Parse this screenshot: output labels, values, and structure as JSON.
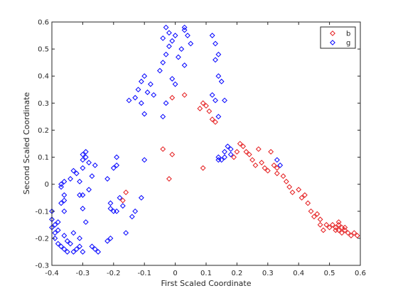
{
  "chart_data": {
    "type": "scatter",
    "title": "",
    "xlabel": "First Scaled Coordinate",
    "ylabel": "Second Scaled Coordinate",
    "xlim": [
      -0.4,
      0.6
    ],
    "ylim": [
      -0.3,
      0.6
    ],
    "xticks": [
      "-0.4",
      "-0.3",
      "-0.2",
      "-0.1",
      "0",
      "0.1",
      "0.2",
      "0.3",
      "0.4",
      "0.5",
      "0.6"
    ],
    "yticks": [
      "-0.3",
      "-0.2",
      "-0.1",
      "0",
      "0.1",
      "0.2",
      "0.3",
      "0.4",
      "0.5",
      "0.6"
    ],
    "marker": "diamond",
    "grid": false,
    "legend_position": "top-right",
    "series": [
      {
        "name": "b",
        "color": "#e41a1c",
        "points": [
          [
            -0.17,
            -0.06
          ],
          [
            -0.16,
            -0.03
          ],
          [
            -0.02,
            0.02
          ],
          [
            -0.01,
            0.11
          ],
          [
            -0.04,
            0.13
          ],
          [
            -0.01,
            0.32
          ],
          [
            0.03,
            0.33
          ],
          [
            0.08,
            0.28
          ],
          [
            0.09,
            0.3
          ],
          [
            0.1,
            0.29
          ],
          [
            0.11,
            0.27
          ],
          [
            0.12,
            0.24
          ],
          [
            0.13,
            0.23
          ],
          [
            0.09,
            0.06
          ],
          [
            0.19,
            0.1
          ],
          [
            0.2,
            0.12
          ],
          [
            0.21,
            0.15
          ],
          [
            0.22,
            0.14
          ],
          [
            0.23,
            0.12
          ],
          [
            0.24,
            0.11
          ],
          [
            0.25,
            0.09
          ],
          [
            0.26,
            0.07
          ],
          [
            0.27,
            0.13
          ],
          [
            0.28,
            0.08
          ],
          [
            0.29,
            0.06
          ],
          [
            0.3,
            0.05
          ],
          [
            0.31,
            0.12
          ],
          [
            0.32,
            0.07
          ],
          [
            0.33,
            0.06
          ],
          [
            0.33,
            0.04
          ],
          [
            0.35,
            0.03
          ],
          [
            0.36,
            0.01
          ],
          [
            0.37,
            -0.01
          ],
          [
            0.38,
            -0.03
          ],
          [
            0.4,
            -0.02
          ],
          [
            0.41,
            -0.05
          ],
          [
            0.42,
            -0.04
          ],
          [
            0.43,
            -0.07
          ],
          [
            0.44,
            -0.1
          ],
          [
            0.45,
            -0.12
          ],
          [
            0.46,
            -0.11
          ],
          [
            0.47,
            -0.13
          ],
          [
            0.47,
            -0.15
          ],
          [
            0.49,
            -0.15
          ],
          [
            0.5,
            -0.16
          ],
          [
            0.51,
            -0.15
          ],
          [
            0.52,
            -0.16
          ],
          [
            0.52,
            -0.17
          ],
          [
            0.53,
            -0.15
          ],
          [
            0.53,
            -0.17
          ],
          [
            0.54,
            -0.16
          ],
          [
            0.54,
            -0.18
          ],
          [
            0.55,
            -0.17
          ],
          [
            0.56,
            -0.18
          ],
          [
            0.57,
            -0.19
          ],
          [
            0.58,
            -0.18
          ],
          [
            0.59,
            -0.19
          ],
          [
            0.53,
            -0.14
          ],
          [
            0.55,
            -0.16
          ],
          [
            0.48,
            -0.17
          ]
        ]
      },
      {
        "name": "g",
        "color": "#0000ff",
        "points": [
          [
            -0.4,
            -0.1
          ],
          [
            -0.4,
            -0.13
          ],
          [
            -0.39,
            -0.15
          ],
          [
            -0.4,
            -0.16
          ],
          [
            -0.39,
            -0.18
          ],
          [
            -0.38,
            -0.14
          ],
          [
            -0.38,
            -0.17
          ],
          [
            -0.39,
            -0.2
          ],
          [
            -0.38,
            -0.22
          ],
          [
            -0.37,
            -0.23
          ],
          [
            -0.36,
            -0.24
          ],
          [
            -0.35,
            -0.25
          ],
          [
            -0.36,
            -0.19
          ],
          [
            -0.35,
            -0.21
          ],
          [
            -0.34,
            -0.22
          ],
          [
            -0.33,
            -0.25
          ],
          [
            -0.32,
            -0.24
          ],
          [
            -0.31,
            -0.23
          ],
          [
            -0.3,
            -0.25
          ],
          [
            -0.31,
            -0.2
          ],
          [
            -0.33,
            -0.18
          ],
          [
            -0.36,
            -0.1
          ],
          [
            -0.37,
            -0.07
          ],
          [
            -0.36,
            -0.06
          ],
          [
            -0.36,
            -0.04
          ],
          [
            -0.37,
            -0.01
          ],
          [
            -0.37,
            0.0
          ],
          [
            -0.36,
            0.01
          ],
          [
            -0.34,
            0.02
          ],
          [
            -0.33,
            0.05
          ],
          [
            -0.32,
            0.04
          ],
          [
            -0.31,
            0.01
          ],
          [
            -0.3,
            0.06
          ],
          [
            -0.3,
            0.09
          ],
          [
            -0.3,
            0.11
          ],
          [
            -0.29,
            0.12
          ],
          [
            -0.29,
            0.1
          ],
          [
            -0.28,
            0.08
          ],
          [
            -0.27,
            0.03
          ],
          [
            -0.26,
            0.07
          ],
          [
            -0.28,
            -0.02
          ],
          [
            -0.3,
            -0.04
          ],
          [
            -0.31,
            -0.04
          ],
          [
            -0.3,
            -0.09
          ],
          [
            -0.29,
            -0.14
          ],
          [
            -0.27,
            -0.23
          ],
          [
            -0.26,
            -0.24
          ],
          [
            -0.25,
            -0.25
          ],
          [
            -0.22,
            -0.21
          ],
          [
            -0.21,
            -0.2
          ],
          [
            -0.2,
            -0.1
          ],
          [
            -0.19,
            -0.1
          ],
          [
            -0.21,
            -0.09
          ],
          [
            -0.21,
            -0.07
          ],
          [
            -0.2,
            0.06
          ],
          [
            -0.19,
            0.07
          ],
          [
            -0.19,
            0.1
          ],
          [
            -0.22,
            0.02
          ],
          [
            -0.18,
            -0.05
          ],
          [
            -0.17,
            -0.08
          ],
          [
            -0.16,
            -0.18
          ],
          [
            -0.14,
            -0.12
          ],
          [
            -0.13,
            -0.1
          ],
          [
            -0.11,
            -0.05
          ],
          [
            -0.1,
            0.09
          ],
          [
            -0.15,
            0.31
          ],
          [
            -0.13,
            0.32
          ],
          [
            -0.11,
            0.3
          ],
          [
            -0.1,
            0.26
          ],
          [
            -0.12,
            0.35
          ],
          [
            -0.11,
            0.38
          ],
          [
            -0.1,
            0.4
          ],
          [
            -0.08,
            0.37
          ],
          [
            -0.07,
            0.33
          ],
          [
            -0.09,
            0.34
          ],
          [
            -0.05,
            0.42
          ],
          [
            -0.04,
            0.45
          ],
          [
            -0.03,
            0.48
          ],
          [
            -0.02,
            0.51
          ],
          [
            -0.01,
            0.53
          ],
          [
            0.0,
            0.55
          ],
          [
            0.02,
            0.5
          ],
          [
            0.03,
            0.57
          ],
          [
            0.04,
            0.55
          ],
          [
            0.05,
            0.52
          ],
          [
            -0.03,
            0.58
          ],
          [
            -0.02,
            0.56
          ],
          [
            -0.04,
            0.54
          ],
          [
            0.01,
            0.47
          ],
          [
            0.03,
            0.44
          ],
          [
            -0.01,
            0.39
          ],
          [
            0.0,
            0.37
          ],
          [
            -0.03,
            0.3
          ],
          [
            -0.04,
            0.25
          ],
          [
            0.03,
            0.58
          ],
          [
            0.12,
            0.55
          ],
          [
            0.13,
            0.52
          ],
          [
            0.14,
            0.48
          ],
          [
            0.13,
            0.46
          ],
          [
            0.14,
            0.4
          ],
          [
            0.15,
            0.38
          ],
          [
            0.12,
            0.33
          ],
          [
            0.13,
            0.31
          ],
          [
            0.16,
            0.31
          ],
          [
            0.14,
            0.25
          ],
          [
            0.14,
            0.1
          ],
          [
            0.15,
            0.09
          ],
          [
            0.16,
            0.1
          ],
          [
            0.16,
            0.12
          ],
          [
            0.17,
            0.14
          ],
          [
            0.18,
            0.13
          ],
          [
            0.18,
            0.11
          ],
          [
            0.33,
            0.09
          ],
          [
            0.34,
            0.07
          ],
          [
            0.14,
            0.09
          ]
        ]
      }
    ]
  }
}
